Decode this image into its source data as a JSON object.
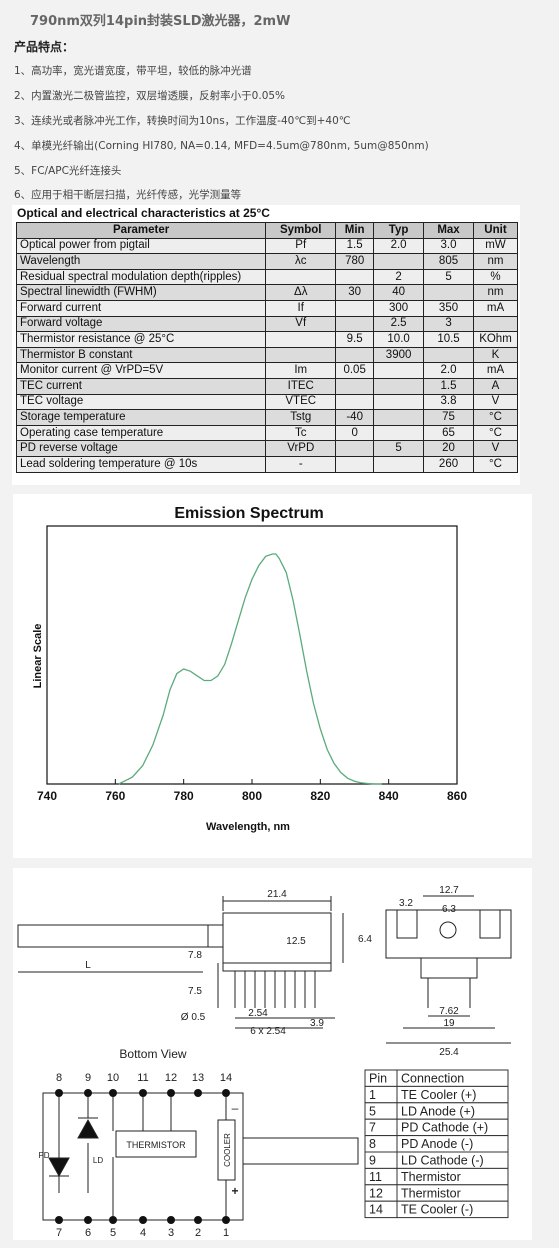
{
  "title": "790nm双列14pin封装SLD激光器，2mW",
  "features_heading": "产品特点：",
  "features": [
    "1、高功率，宽光谱宽度，带平坦，较低的脉冲光谱",
    "2、内置激光二极管监控，双层增透膜，反射率小于0.05%",
    "3、连续光或者脉冲光工作，转换时间为10ns，工作温度-40℃到+40℃",
    "4、单模光纤输出(Corning HI780, NA=0.14, MFD=4.5um@780nm, 5um@850nm)",
    "5、FC/APC光纤连接头",
    "6、应用于相干断层扫描，光纤传感，光学测量等"
  ],
  "table": {
    "caption": "Optical and electrical characteristics at 25°C",
    "headers": [
      "Parameter",
      "Symbol",
      "Min",
      "Typ",
      "Max",
      "Unit"
    ],
    "rows": [
      [
        "Optical power from pigtail",
        "Pf",
        "1.5",
        "2.0",
        "3.0",
        "mW"
      ],
      [
        "Wavelength",
        "λc",
        "780",
        "",
        "805",
        "nm"
      ],
      [
        "Residual spectral modulation depth(ripples)",
        "",
        "",
        "2",
        "5",
        "%"
      ],
      [
        "Spectral linewidth (FWHM)",
        "Δλ",
        "30",
        "40",
        "",
        "nm"
      ],
      [
        "Forward current",
        "If",
        "",
        "300",
        "350",
        "mA"
      ],
      [
        "Forward voltage",
        "Vf",
        "",
        "2.5",
        "3",
        ""
      ],
      [
        "Thermistor resistance @ 25°C",
        "",
        "9.5",
        "10.0",
        "10.5",
        "KOhm"
      ],
      [
        "Thermistor B constant",
        "",
        "",
        "3900",
        "",
        "K"
      ],
      [
        "Monitor current @ VrPD=5V",
        "Im",
        "0.05",
        "",
        "2.0",
        "mA"
      ],
      [
        "TEC current",
        "ITEC",
        "",
        "",
        "1.5",
        "A"
      ],
      [
        "TEC voltage",
        "VTEC",
        "",
        "",
        "3.8",
        "V"
      ],
      [
        "Storage temperature",
        "Tstg",
        "-40",
        "",
        "75",
        "°C"
      ],
      [
        "Operating case temperature",
        "Tc",
        "0",
        "",
        "65",
        "°C"
      ],
      [
        "PD reverse voltage",
        "VrPD",
        "",
        "5",
        "20",
        "V"
      ],
      [
        "Lead soldering temperature @ 10s",
        "-",
        "",
        "",
        "260",
        "°C"
      ]
    ]
  },
  "chart_data": {
    "type": "line",
    "title": "Emission Spectrum",
    "xlabel": "Wavelength, nm",
    "ylabel": "Linear Scale",
    "xlim": [
      740,
      860
    ],
    "xticks": [
      740,
      760,
      780,
      800,
      820,
      840,
      860
    ],
    "ylim": [
      0,
      1
    ],
    "line_color": "#5aab7c",
    "series": [
      {
        "x": [
          761,
          765,
          768,
          771,
          774,
          776,
          778,
          780,
          782,
          784,
          786,
          788,
          790,
          792,
          794,
          796,
          798,
          800,
          802,
          804,
          806,
          807,
          808,
          810,
          812,
          814,
          816,
          818,
          820,
          822,
          824,
          826,
          828,
          830,
          832,
          834,
          836,
          838
        ],
        "y": [
          0.0,
          0.03,
          0.08,
          0.17,
          0.3,
          0.41,
          0.48,
          0.5,
          0.49,
          0.47,
          0.45,
          0.45,
          0.47,
          0.52,
          0.61,
          0.71,
          0.81,
          0.89,
          0.95,
          0.99,
          1.0,
          1.0,
          0.98,
          0.92,
          0.8,
          0.65,
          0.49,
          0.35,
          0.24,
          0.15,
          0.09,
          0.05,
          0.025,
          0.012,
          0.005,
          0.002,
          0.0,
          0.0
        ]
      }
    ]
  },
  "drawing": {
    "dims_side": {
      "top": "21.4",
      "height": "12.5",
      "d1": "7.8",
      "d2": "7.5",
      "pin": "Ø 0.5",
      "pitch": "2.54",
      "span": "6 x 2.54",
      "edge": "3.9",
      "fiber": "L"
    },
    "dims_end": {
      "w1": "12.7",
      "w2": "6.3",
      "w3": "3.2",
      "h": "6.4",
      "pin_sp": "7.62",
      "w4": "19",
      "w5": "25.4"
    },
    "bottom_view_label": "Bottom View",
    "top_pins": [
      "8",
      "9",
      "10",
      "11",
      "12",
      "13",
      "14"
    ],
    "bottom_pins": [
      "7",
      "6",
      "5",
      "4",
      "3",
      "2",
      "1"
    ],
    "labels": {
      "pd": "PD",
      "ld": "LD",
      "thermistor": "THERMISTOR",
      "cooler": "COOLER",
      "minus": "–",
      "plus": "+"
    }
  },
  "pins": {
    "headers": [
      "Pin",
      "Connection"
    ],
    "rows": [
      [
        "1",
        "TE Cooler (+)"
      ],
      [
        "5",
        "LD Anode (+)"
      ],
      [
        "7",
        "PD Cathode (+)"
      ],
      [
        "8",
        "PD Anode (-)"
      ],
      [
        "9",
        "LD Cathode (-)"
      ],
      [
        "11",
        "Thermistor"
      ],
      [
        "12",
        "Thermistor"
      ],
      [
        "14",
        "TE Cooler (-)"
      ]
    ]
  }
}
